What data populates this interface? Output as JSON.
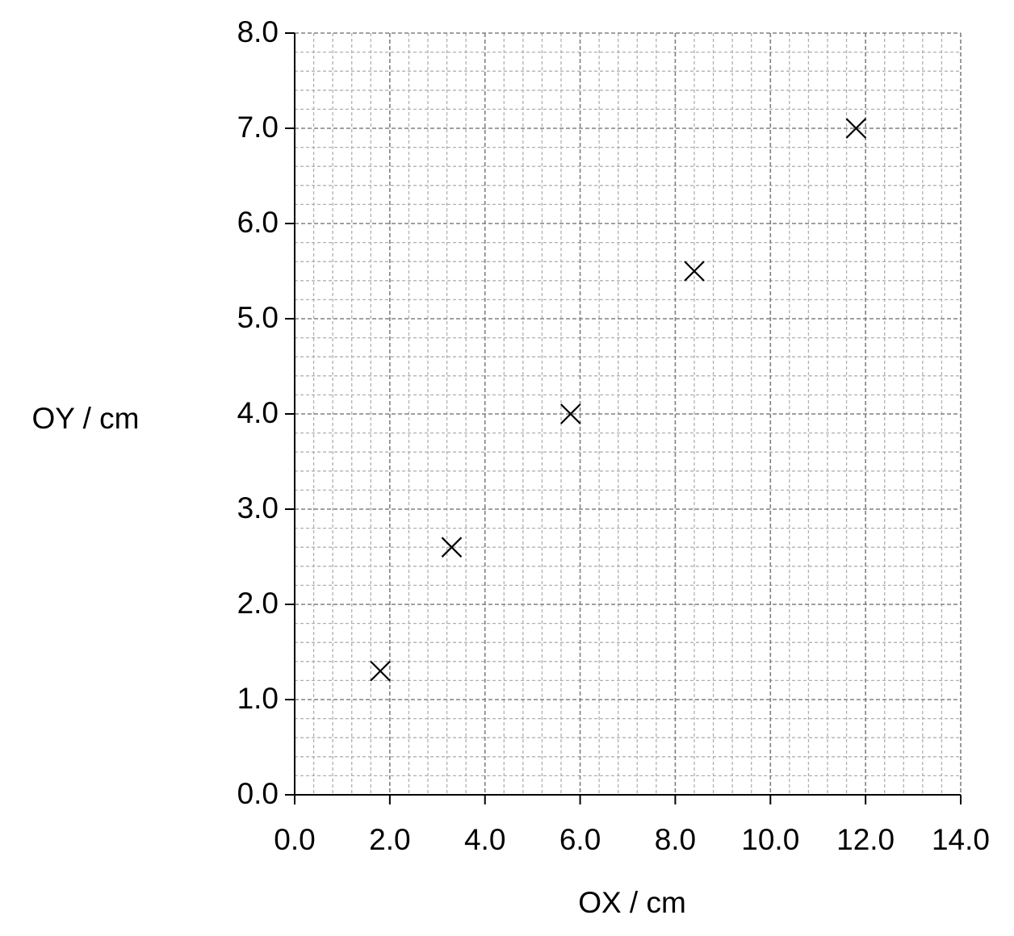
{
  "chart_data": {
    "type": "scatter",
    "x_label": "OX / cm",
    "y_label": "OY / cm",
    "x": [
      1.8,
      3.3,
      5.8,
      8.4,
      11.8
    ],
    "values": [
      1.3,
      2.6,
      4.0,
      5.5,
      7.0
    ],
    "marker": "x",
    "color": "#000000",
    "xlim": [
      0,
      14
    ],
    "xticks": [
      {
        "value": 0,
        "label": "0.0"
      },
      {
        "value": 2,
        "label": "2.0"
      },
      {
        "value": 4,
        "label": "4.0"
      },
      {
        "value": 6,
        "label": "6.0"
      },
      {
        "value": 8,
        "label": "8.0"
      },
      {
        "value": 10,
        "label": "10.0"
      },
      {
        "value": 12,
        "label": "12.0"
      },
      {
        "value": 14,
        "label": "14.0"
      }
    ],
    "ylim": [
      0,
      8
    ],
    "yticks": [
      {
        "value": 0,
        "label": "0.0"
      },
      {
        "value": 1,
        "label": "1.0"
      },
      {
        "value": 2,
        "label": "2.0"
      },
      {
        "value": 3,
        "label": "3.0"
      },
      {
        "value": 4,
        "label": "4.0"
      },
      {
        "value": 5,
        "label": "5.0"
      },
      {
        "value": 6,
        "label": "6.0"
      },
      {
        "value": 7,
        "label": "7.0"
      },
      {
        "value": 8,
        "label": "8.0"
      }
    ],
    "grid": true
  }
}
